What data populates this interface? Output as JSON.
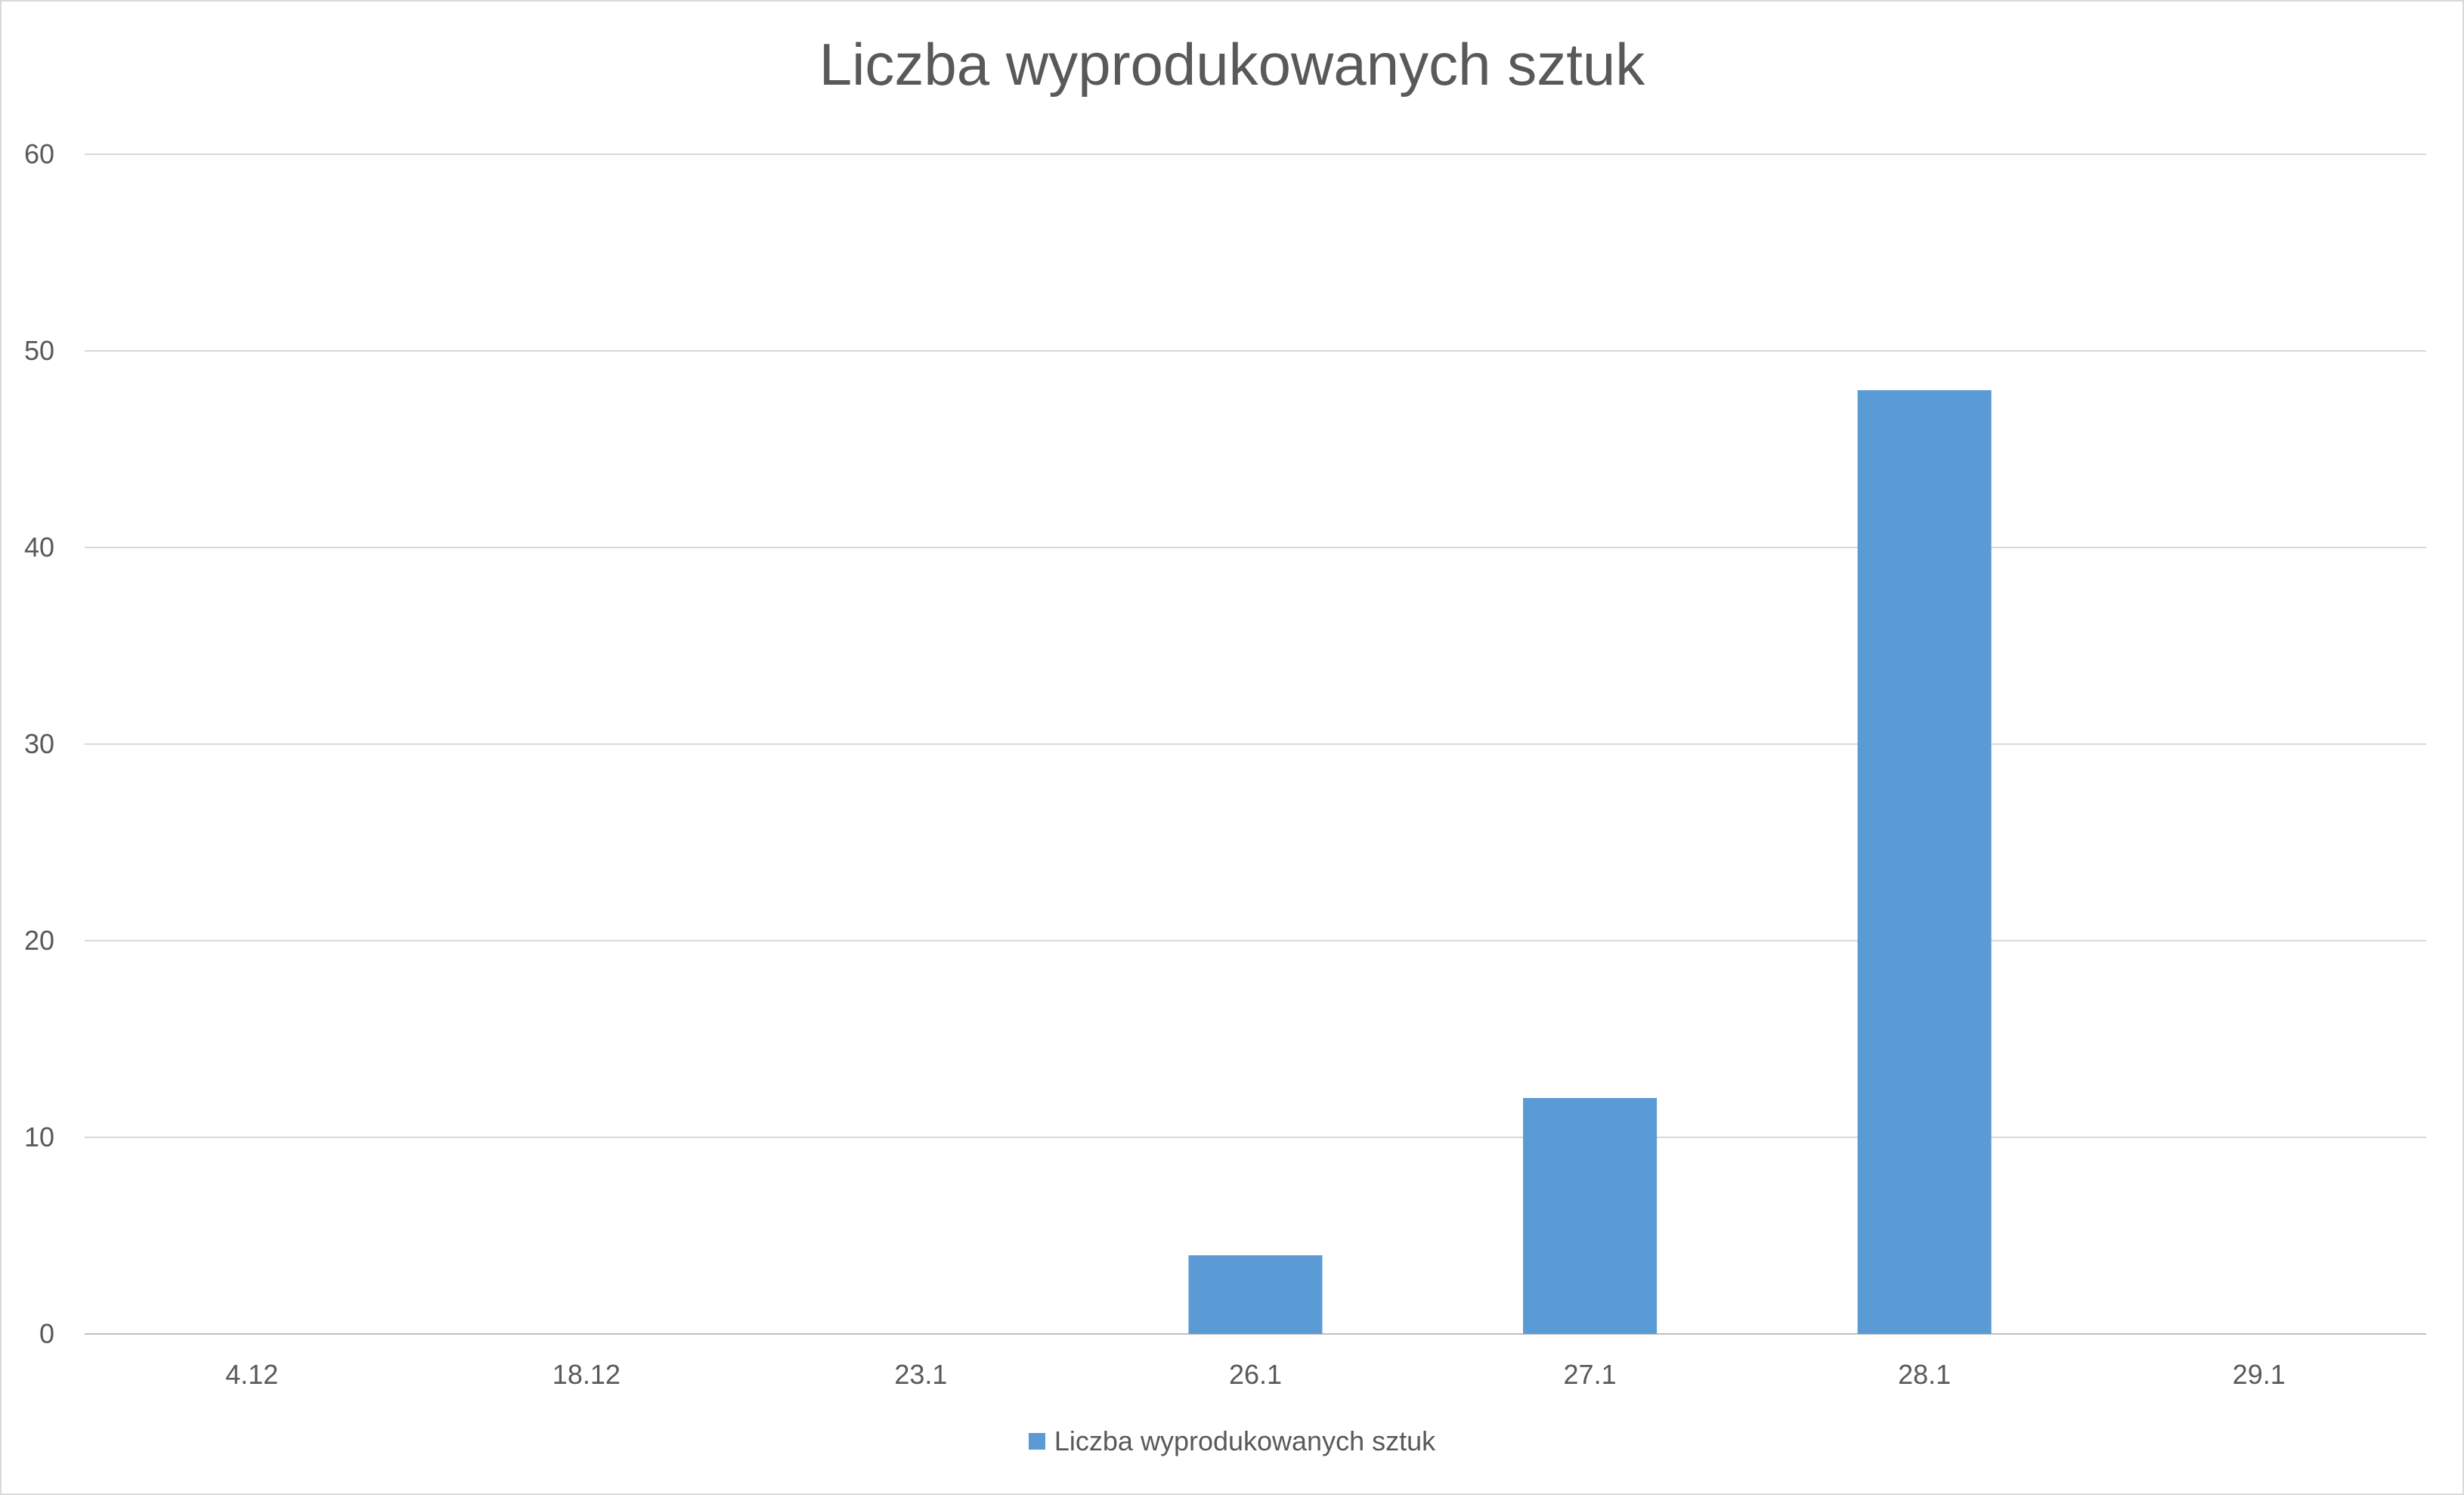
{
  "chart_data": {
    "type": "bar",
    "title": "Liczba wyprodukowanych sztuk",
    "categories": [
      "4.12",
      "18.12",
      "23.1",
      "26.1",
      "27.1",
      "28.1",
      "29.1"
    ],
    "series": [
      {
        "name": "Liczba wyprodukowanych sztuk",
        "values": [
          0,
          0,
          0,
          4,
          12,
          48,
          0
        ],
        "color": "#5b9bd5"
      }
    ],
    "ylim": [
      0,
      60
    ],
    "yticks": [
      0,
      10,
      20,
      30,
      40,
      50,
      60
    ],
    "grid": true,
    "legend_position": "bottom"
  }
}
